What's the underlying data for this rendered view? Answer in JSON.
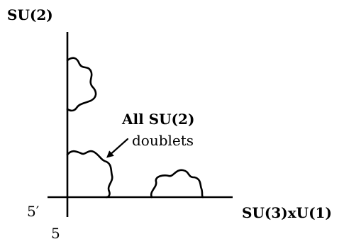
{
  "labels": {
    "su2": "SU(2)",
    "su3u1": "SU(3)xU(1)",
    "five_prime": "5′",
    "five": "5",
    "annotation_line1": "All SU(2)",
    "annotation_line2": "doublets"
  },
  "icons": {
    "arrow": "arrow-icon"
  }
}
